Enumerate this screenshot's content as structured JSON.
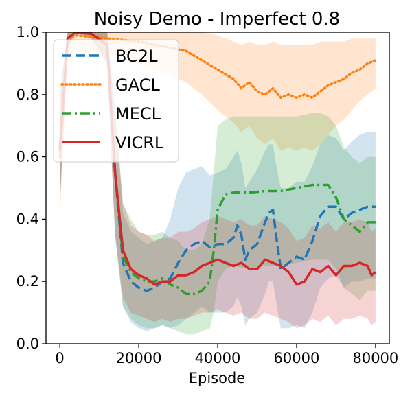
{
  "chart_data": {
    "type": "line",
    "title": "Noisy Demo - Imperfect 0.8",
    "xlabel": "Episode",
    "ylabel": "",
    "xlim": [
      -3500,
      83500
    ],
    "ylim": [
      0.0,
      1.0
    ],
    "xticks": [
      0,
      20000,
      40000,
      60000,
      80000
    ],
    "xtick_labels": [
      "0",
      "20000",
      "40000",
      "60000",
      "80000"
    ],
    "yticks": [
      0.0,
      0.2,
      0.4,
      0.6,
      0.8,
      1.0
    ],
    "ytick_labels": [
      "0.0",
      "0.2",
      "0.4",
      "0.6",
      "0.8",
      "1.0"
    ],
    "legend_position": "top-left",
    "grid": false,
    "series": [
      {
        "name": "BC2L",
        "color": "#1f77b4",
        "dash": "dashed",
        "x": [
          0,
          2000,
          4000,
          8000,
          12000,
          14000,
          16000,
          18000,
          20000,
          22000,
          24000,
          26000,
          28000,
          30000,
          32000,
          34000,
          36000,
          38000,
          40000,
          42000,
          44000,
          45000,
          46000,
          47000,
          48000,
          50000,
          52000,
          53000,
          54000,
          55000,
          56000,
          58000,
          60000,
          62000,
          64000,
          66000,
          68000,
          70000,
          71000,
          72000,
          74000,
          76000,
          78000,
          80000
        ],
        "values": [
          0.62,
          0.98,
          1.0,
          0.995,
          0.96,
          0.55,
          0.26,
          0.2,
          0.18,
          0.17,
          0.18,
          0.2,
          0.21,
          0.26,
          0.3,
          0.32,
          0.33,
          0.31,
          0.32,
          0.32,
          0.34,
          0.38,
          0.35,
          0.27,
          0.3,
          0.32,
          0.39,
          0.42,
          0.43,
          0.33,
          0.24,
          0.26,
          0.28,
          0.27,
          0.33,
          0.41,
          0.44,
          0.44,
          0.42,
          0.4,
          0.42,
          0.43,
          0.44,
          0.44
        ],
        "band_upper": [
          0.8,
          1.0,
          1.0,
          1.0,
          1.0,
          0.75,
          0.42,
          0.36,
          0.34,
          0.32,
          0.33,
          0.34,
          0.4,
          0.5,
          0.55,
          0.56,
          0.57,
          0.54,
          0.55,
          0.56,
          0.6,
          0.62,
          0.58,
          0.5,
          0.52,
          0.56,
          0.62,
          0.64,
          0.64,
          0.56,
          0.5,
          0.5,
          0.52,
          0.52,
          0.57,
          0.64,
          0.67,
          0.66,
          0.64,
          0.62,
          0.65,
          0.67,
          0.68,
          0.68
        ],
        "band_lower": [
          0.45,
          0.95,
          1.0,
          0.98,
          0.9,
          0.35,
          0.12,
          0.07,
          0.05,
          0.04,
          0.05,
          0.06,
          0.05,
          0.06,
          0.08,
          0.1,
          0.12,
          0.1,
          0.1,
          0.1,
          0.12,
          0.15,
          0.12,
          0.06,
          0.08,
          0.1,
          0.16,
          0.2,
          0.2,
          0.12,
          0.05,
          0.05,
          0.06,
          0.05,
          0.1,
          0.18,
          0.21,
          0.22,
          0.2,
          0.18,
          0.2,
          0.2,
          0.21,
          0.21
        ]
      },
      {
        "name": "GACL",
        "color": "#ff7f0e",
        "dash": "dotted",
        "x": [
          0,
          2000,
          4000,
          8000,
          12000,
          16000,
          20000,
          24000,
          28000,
          32000,
          36000,
          40000,
          44000,
          46000,
          48000,
          50000,
          52000,
          54000,
          56000,
          58000,
          60000,
          62000,
          64000,
          66000,
          68000,
          70000,
          72000,
          74000,
          76000,
          78000,
          80000
        ],
        "values": [
          0.6,
          0.98,
          0.99,
          0.985,
          0.98,
          0.975,
          0.97,
          0.96,
          0.95,
          0.94,
          0.91,
          0.88,
          0.85,
          0.82,
          0.84,
          0.81,
          0.8,
          0.82,
          0.79,
          0.8,
          0.79,
          0.8,
          0.79,
          0.81,
          0.83,
          0.84,
          0.85,
          0.87,
          0.88,
          0.9,
          0.91
        ],
        "band_upper": [
          0.8,
          1.0,
          1.0,
          1.0,
          1.0,
          1.0,
          1.0,
          1.0,
          1.0,
          1.0,
          1.0,
          0.99,
          0.97,
          0.96,
          0.97,
          0.96,
          0.96,
          0.97,
          0.96,
          0.96,
          0.96,
          0.96,
          0.96,
          0.97,
          0.97,
          0.97,
          0.97,
          0.98,
          0.98,
          0.98,
          0.98
        ],
        "band_lower": [
          0.4,
          0.92,
          0.94,
          0.94,
          0.93,
          0.92,
          0.9,
          0.88,
          0.86,
          0.84,
          0.8,
          0.75,
          0.71,
          0.68,
          0.7,
          0.66,
          0.64,
          0.66,
          0.62,
          0.63,
          0.62,
          0.63,
          0.62,
          0.64,
          0.67,
          0.7,
          0.72,
          0.75,
          0.78,
          0.8,
          0.82
        ]
      },
      {
        "name": "MECL",
        "color": "#2ca02c",
        "dash": "dashdot",
        "x": [
          0,
          2000,
          4000,
          8000,
          12000,
          14000,
          16000,
          18000,
          20000,
          22000,
          24000,
          26000,
          28000,
          30000,
          32000,
          34000,
          36000,
          38000,
          39000,
          40000,
          42000,
          44000,
          48000,
          52000,
          56000,
          60000,
          64000,
          66000,
          68000,
          70000,
          72000,
          74000,
          76000,
          78000,
          80000
        ],
        "values": [
          0.62,
          0.98,
          1.0,
          0.995,
          0.96,
          0.55,
          0.28,
          0.23,
          0.21,
          0.2,
          0.2,
          0.21,
          0.19,
          0.18,
          0.16,
          0.16,
          0.17,
          0.2,
          0.3,
          0.43,
          0.48,
          0.485,
          0.485,
          0.49,
          0.49,
          0.5,
          0.51,
          0.51,
          0.51,
          0.47,
          0.4,
          0.38,
          0.36,
          0.39,
          0.39
        ],
        "band_upper": [
          0.8,
          1.0,
          1.0,
          1.0,
          1.0,
          0.75,
          0.45,
          0.4,
          0.36,
          0.35,
          0.35,
          0.36,
          0.34,
          0.33,
          0.3,
          0.3,
          0.32,
          0.4,
          0.55,
          0.7,
          0.72,
          0.73,
          0.73,
          0.73,
          0.73,
          0.73,
          0.74,
          0.74,
          0.73,
          0.7,
          0.63,
          0.6,
          0.58,
          0.6,
          0.6
        ],
        "band_lower": [
          0.45,
          0.95,
          1.0,
          0.98,
          0.9,
          0.35,
          0.12,
          0.08,
          0.06,
          0.05,
          0.05,
          0.06,
          0.05,
          0.04,
          0.03,
          0.03,
          0.04,
          0.05,
          0.1,
          0.2,
          0.24,
          0.25,
          0.24,
          0.25,
          0.25,
          0.26,
          0.27,
          0.27,
          0.27,
          0.24,
          0.18,
          0.16,
          0.14,
          0.17,
          0.17
        ]
      },
      {
        "name": "VICRL",
        "color": "#d62728",
        "dash": "solid",
        "x": [
          0,
          2000,
          4000,
          8000,
          12000,
          14000,
          16000,
          18000,
          20000,
          22000,
          24000,
          26000,
          28000,
          30000,
          32000,
          34000,
          36000,
          38000,
          40000,
          42000,
          44000,
          46000,
          48000,
          50000,
          52000,
          54000,
          56000,
          58000,
          60000,
          62000,
          64000,
          66000,
          68000,
          70000,
          72000,
          74000,
          76000,
          78000,
          79000,
          80000
        ],
        "values": [
          0.62,
          0.98,
          1.0,
          0.995,
          0.96,
          0.55,
          0.3,
          0.24,
          0.22,
          0.21,
          0.19,
          0.2,
          0.2,
          0.22,
          0.22,
          0.23,
          0.25,
          0.26,
          0.27,
          0.26,
          0.25,
          0.26,
          0.24,
          0.24,
          0.27,
          0.26,
          0.25,
          0.23,
          0.19,
          0.2,
          0.24,
          0.23,
          0.25,
          0.22,
          0.25,
          0.25,
          0.26,
          0.25,
          0.22,
          0.23
        ],
        "band_upper": [
          0.8,
          1.0,
          1.0,
          1.0,
          1.0,
          0.75,
          0.45,
          0.38,
          0.36,
          0.35,
          0.33,
          0.34,
          0.34,
          0.36,
          0.36,
          0.37,
          0.39,
          0.4,
          0.41,
          0.4,
          0.39,
          0.4,
          0.38,
          0.38,
          0.41,
          0.4,
          0.39,
          0.37,
          0.33,
          0.34,
          0.38,
          0.37,
          0.39,
          0.36,
          0.39,
          0.39,
          0.4,
          0.39,
          0.36,
          0.37
        ],
        "band_lower": [
          0.45,
          0.95,
          1.0,
          0.98,
          0.9,
          0.35,
          0.15,
          0.1,
          0.09,
          0.08,
          0.07,
          0.08,
          0.07,
          0.08,
          0.08,
          0.09,
          0.1,
          0.1,
          0.11,
          0.1,
          0.09,
          0.1,
          0.08,
          0.08,
          0.1,
          0.09,
          0.08,
          0.07,
          0.05,
          0.06,
          0.08,
          0.07,
          0.09,
          0.06,
          0.08,
          0.08,
          0.09,
          0.08,
          0.06,
          0.07
        ]
      }
    ]
  }
}
